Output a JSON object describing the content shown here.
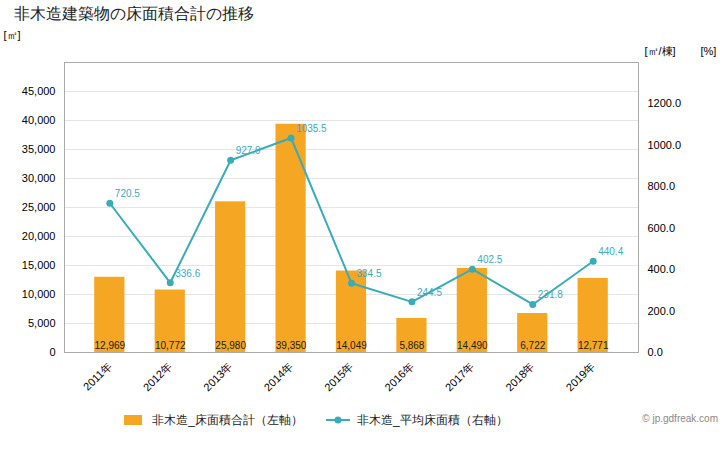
{
  "chart_data": {
    "type": "bar",
    "title": "非木造建築物の床面積合計の推移",
    "categories": [
      "2011年",
      "2012年",
      "2013年",
      "2014年",
      "2015年",
      "2016年",
      "2017年",
      "2018年",
      "2019年"
    ],
    "series": [
      {
        "name": "非木造_床面積合計（左軸）",
        "type": "bar",
        "color": "#f5a623",
        "values": [
          12969,
          10772,
          25980,
          39350,
          14049,
          5868,
          14490,
          6722,
          12771
        ],
        "value_labels": [
          "12,969",
          "10,772",
          "25,980",
          "39,350",
          "14,049",
          "5,868",
          "14,490",
          "6,722",
          "12,771"
        ]
      },
      {
        "name": "非木造_平均床面積（右軸）",
        "type": "line",
        "axis": "y2",
        "color": "#3aacb8",
        "marker": "circle",
        "values": [
          720.5,
          336.6,
          927.9,
          1035.5,
          334.5,
          244.5,
          402.5,
          231.8,
          440.4
        ]
      }
    ],
    "ylabel": "[㎡]",
    "y2label": "[㎡/棟]",
    "annotations": [
      "[%]",
      "© jp.gdfreak.com"
    ],
    "ylim": [
      0,
      50000
    ],
    "yticks": [
      0,
      {
        "value": 5000,
        "label": "5,000"
      },
      {
        "value": 10000,
        "label": "10,000"
      },
      {
        "value": 15000,
        "label": "15,000"
      },
      {
        "value": 20000,
        "label": "20,000"
      },
      {
        "value": 25000,
        "label": "25,000"
      },
      {
        "value": 30000,
        "label": "30,000"
      },
      {
        "value": 35000,
        "label": "35,000"
      },
      {
        "value": 40000,
        "label": "40,000"
      },
      {
        "value": 45000,
        "label": "45,000"
      }
    ],
    "y2lim": [
      0,
      1400
    ],
    "y2ticks": [
      {
        "value": 0,
        "label": "0.0"
      },
      {
        "value": 200,
        "label": "200.0"
      },
      {
        "value": 400,
        "label": "400.0"
      },
      {
        "value": 600,
        "label": "600.0"
      },
      {
        "value": 800,
        "label": "800.0"
      },
      {
        "value": 1000,
        "label": "1000.0"
      },
      {
        "value": 1200,
        "label": "1200.0"
      }
    ],
    "grid": true,
    "legend": "bottom",
    "data_labels": true
  }
}
